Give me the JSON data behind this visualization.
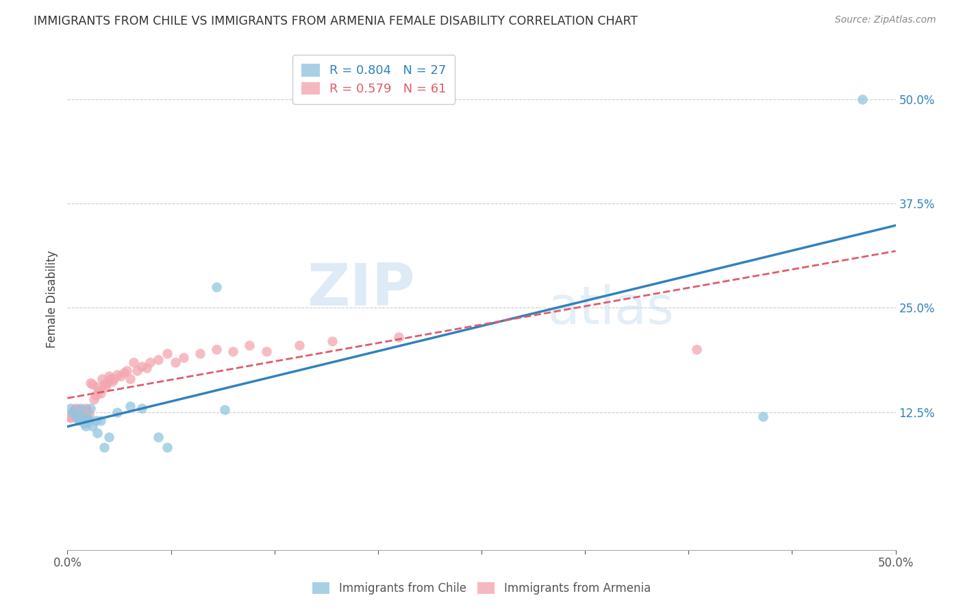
{
  "title": "IMMIGRANTS FROM CHILE VS IMMIGRANTS FROM ARMENIA FEMALE DISABILITY CORRELATION CHART",
  "source": "Source: ZipAtlas.com",
  "ylabel": "Female Disability",
  "xlim": [
    0.0,
    0.5
  ],
  "ylim": [
    -0.04,
    0.56
  ],
  "xticks": [
    0.0,
    0.0625,
    0.125,
    0.1875,
    0.25,
    0.3125,
    0.375,
    0.4375,
    0.5
  ],
  "xticklabels": [
    "0.0%",
    "",
    "",
    "",
    "",
    "",
    "",
    "",
    "50.0%"
  ],
  "yticks_right": [
    0.125,
    0.25,
    0.375,
    0.5
  ],
  "yticklabels_right": [
    "12.5%",
    "25.0%",
    "37.5%",
    "50.0%"
  ],
  "chile_color": "#92c5de",
  "armenia_color": "#f4a6b0",
  "chile_line_color": "#3182bd",
  "armenia_line_color": "#e05c6a",
  "chile_R": 0.804,
  "chile_N": 27,
  "armenia_R": 0.579,
  "armenia_N": 61,
  "watermark_zip": "ZIP",
  "watermark_atlas": "atlas",
  "chile_scatter_x": [
    0.002,
    0.003,
    0.005,
    0.006,
    0.007,
    0.008,
    0.009,
    0.01,
    0.011,
    0.012,
    0.013,
    0.014,
    0.015,
    0.017,
    0.018,
    0.02,
    0.022,
    0.025,
    0.03,
    0.038,
    0.045,
    0.055,
    0.06,
    0.09,
    0.095,
    0.42,
    0.48
  ],
  "chile_scatter_y": [
    0.13,
    0.125,
    0.12,
    0.118,
    0.115,
    0.13,
    0.12,
    0.112,
    0.108,
    0.118,
    0.115,
    0.13,
    0.108,
    0.115,
    0.1,
    0.115,
    0.083,
    0.095,
    0.125,
    0.132,
    0.13,
    0.095,
    0.083,
    0.275,
    0.128,
    0.12,
    0.5
  ],
  "armenia_scatter_x": [
    0.001,
    0.002,
    0.003,
    0.003,
    0.004,
    0.004,
    0.005,
    0.005,
    0.006,
    0.006,
    0.007,
    0.007,
    0.008,
    0.008,
    0.009,
    0.009,
    0.01,
    0.01,
    0.011,
    0.011,
    0.012,
    0.012,
    0.013,
    0.014,
    0.015,
    0.016,
    0.017,
    0.018,
    0.019,
    0.02,
    0.021,
    0.022,
    0.023,
    0.024,
    0.025,
    0.026,
    0.027,
    0.028,
    0.03,
    0.032,
    0.034,
    0.036,
    0.038,
    0.04,
    0.042,
    0.045,
    0.048,
    0.05,
    0.055,
    0.06,
    0.065,
    0.07,
    0.08,
    0.09,
    0.1,
    0.11,
    0.12,
    0.14,
    0.16,
    0.2,
    0.38
  ],
  "armenia_scatter_y": [
    0.12,
    0.118,
    0.125,
    0.122,
    0.12,
    0.128,
    0.125,
    0.13,
    0.118,
    0.128,
    0.12,
    0.125,
    0.118,
    0.125,
    0.12,
    0.128,
    0.125,
    0.12,
    0.118,
    0.13,
    0.125,
    0.128,
    0.122,
    0.16,
    0.158,
    0.14,
    0.145,
    0.155,
    0.15,
    0.148,
    0.165,
    0.158,
    0.155,
    0.16,
    0.168,
    0.165,
    0.162,
    0.165,
    0.17,
    0.168,
    0.172,
    0.175,
    0.165,
    0.185,
    0.175,
    0.18,
    0.178,
    0.185,
    0.188,
    0.195,
    0.185,
    0.19,
    0.195,
    0.2,
    0.198,
    0.205,
    0.198,
    0.205,
    0.21,
    0.215,
    0.2
  ]
}
